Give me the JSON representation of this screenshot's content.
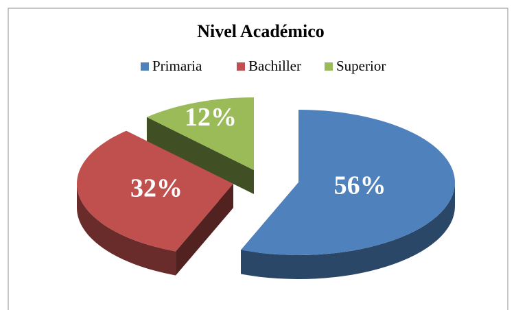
{
  "chart_data": {
    "type": "pie",
    "title": "Nivel Académico",
    "categories": [
      "Primaria",
      "Bachiller",
      "Superior"
    ],
    "values": [
      56,
      32,
      12
    ],
    "value_labels": [
      "56%",
      "32%",
      "12%"
    ],
    "colors": [
      "#4f81bd",
      "#c0504d",
      "#9bbb59"
    ],
    "legend": "top"
  }
}
